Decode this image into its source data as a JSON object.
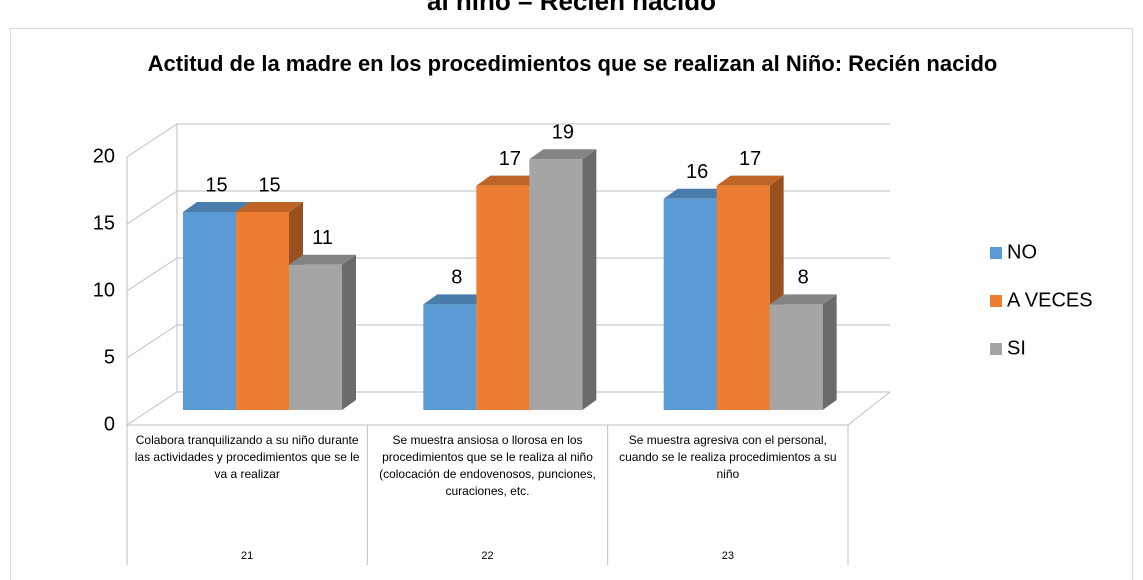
{
  "heading": "al niño – Recién nacido",
  "chart_data": {
    "type": "bar3d",
    "title": "Actitud de la madre en los procedimientos que se realizan al Niño: Recién nacido",
    "categories": [
      "Colabora tranquilizando a su niño durante las actividades y procedimientos que se le va a realizar",
      "Se muestra ansiosa o llorosa en los procedimientos que se le realiza al niño (colocación de endovenosos, punciones, curaciones, etc.",
      "Se muestra agresiva con el personal, cuando se le realiza procedimientos a su niño"
    ],
    "category_codes": [
      "21",
      "22",
      "23"
    ],
    "series": [
      {
        "name": "NO",
        "color": "#5b9bd5",
        "values": [
          15,
          8,
          16
        ]
      },
      {
        "name": "A VECES",
        "color": "#ed7d31",
        "values": [
          15,
          17,
          17
        ]
      },
      {
        "name": "SI",
        "color": "#a5a5a5",
        "values": [
          11,
          19,
          8
        ]
      }
    ],
    "ylim": [
      0,
      20
    ],
    "yticks": [
      0,
      5,
      10,
      15,
      20
    ],
    "grid": true,
    "legend": "right"
  }
}
